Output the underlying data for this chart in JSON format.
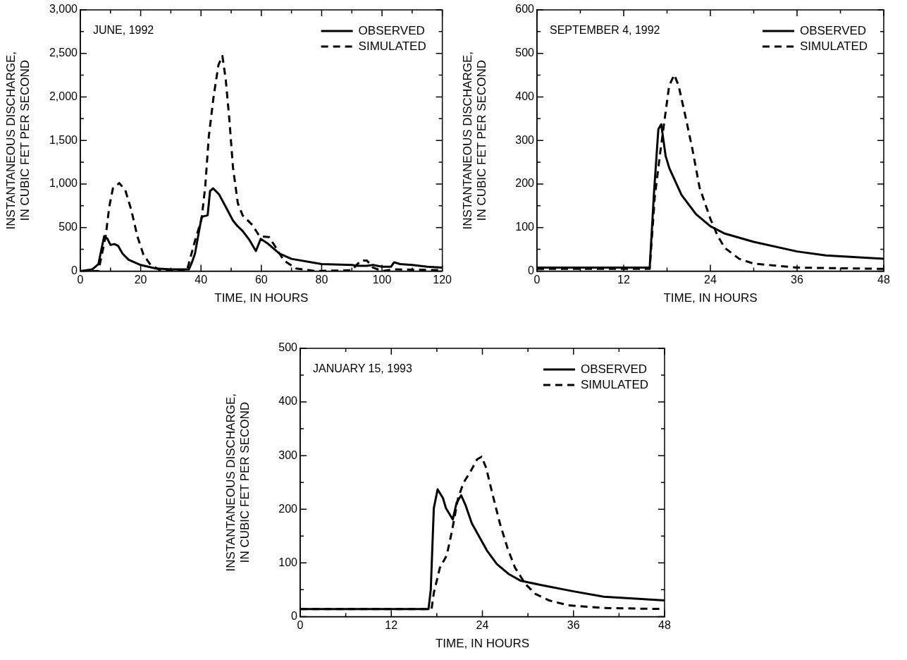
{
  "chart_data": [
    {
      "type": "line",
      "title": "JUNE, 1992",
      "xlabel": "TIME, IN HOURS",
      "ylabel": "INSTANTANEOUS DISCHARGE,\nIN CUBIC FET PER SECOND",
      "legend": "top right",
      "grid": false,
      "marker": "none",
      "xlim": [
        0,
        120
      ],
      "xticks": [
        0,
        {
          "value": 10,
          "label": null
        },
        20,
        {
          "value": 30,
          "label": null
        },
        40,
        {
          "value": 50,
          "label": null
        },
        60,
        {
          "value": 70,
          "label": null
        },
        80,
        {
          "value": 90,
          "label": null
        },
        100,
        {
          "value": 110,
          "label": null
        },
        120
      ],
      "ylim": [
        0,
        3000
      ],
      "yticks": [
        0,
        {
          "value": 250,
          "label": null
        },
        500,
        {
          "value": 750,
          "label": null
        },
        {
          "value": 1000,
          "label": "1,000"
        },
        {
          "value": 1250,
          "label": null
        },
        {
          "value": 1500,
          "label": "1,500"
        },
        {
          "value": 1750,
          "label": null
        },
        {
          "value": 2000,
          "label": "2,000"
        },
        {
          "value": 2250,
          "label": null
        },
        {
          "value": 2500,
          "label": "2,500"
        },
        {
          "value": 2750,
          "label": null
        },
        {
          "value": 3000,
          "label": "3,000"
        }
      ],
      "series": [
        {
          "name": "OBSERVED",
          "color": "#000000",
          "line_style": "solid",
          "x": [
            0,
            4,
            6,
            7,
            7.9,
            9,
            10,
            11.3,
            12.5,
            14,
            16,
            20,
            25,
            30,
            35,
            36,
            37,
            38,
            40.2,
            41,
            42.2,
            43,
            44,
            46,
            48,
            50.6,
            52,
            53.8,
            56,
            58.2,
            59.8,
            62,
            66,
            70,
            80,
            90,
            92,
            95,
            97,
            100,
            103,
            104,
            106,
            110,
            115,
            120
          ],
          "values": [
            0,
            20,
            80,
            250,
            400,
            370,
            300,
            310,
            290,
            200,
            130,
            70,
            30,
            20,
            20,
            20,
            100,
            200,
            620,
            630,
            640,
            920,
            950,
            880,
            750,
            580,
            520,
            460,
            360,
            230,
            370,
            320,
            200,
            140,
            80,
            70,
            60,
            60,
            70,
            50,
            50,
            100,
            80,
            70,
            50,
            40
          ]
        },
        {
          "name": "SIMULATED",
          "color": "#000000",
          "line_style": "dashed",
          "x": [
            0,
            6,
            8.4,
            9.6,
            10.8,
            12.9,
            14.9,
            16.9,
            18.9,
            20.9,
            23.3,
            26.5,
            30,
            35.3,
            37.7,
            40.2,
            41.4,
            42.6,
            44.2,
            45.8,
            47.1,
            48.2,
            49.4,
            50.6,
            52.2,
            53.8,
            57,
            59.4,
            62.6,
            65,
            67.5,
            71.5,
            78,
            90,
            93,
            95,
            97,
            100,
            104,
            120
          ],
          "values": [
            0,
            0,
            400,
            740,
            950,
            1010,
            930,
            700,
            400,
            190,
            70,
            10,
            0,
            0,
            310,
            600,
            970,
            1550,
            2010,
            2370,
            2470,
            2200,
            1740,
            1190,
            780,
            640,
            530,
            400,
            390,
            260,
            120,
            30,
            0,
            10,
            120,
            120,
            40,
            0,
            20,
            10
          ]
        }
      ]
    },
    {
      "type": "line",
      "title": "SEPTEMBER 4, 1992",
      "xlabel": "TIME, IN HOURS",
      "ylabel": "INSTANTANEOUS DISCHARGE,\nIN CUBIC FET PER SECOND",
      "legend": "top right",
      "grid": false,
      "marker": "none",
      "xlim": [
        0,
        48
      ],
      "xticks": [
        0,
        {
          "value": 6,
          "label": null
        },
        12,
        {
          "value": 18,
          "label": null
        },
        24,
        {
          "value": 30,
          "label": null
        },
        36,
        {
          "value": 42,
          "label": null
        },
        48
      ],
      "ylim": [
        0,
        600
      ],
      "yticks": [
        0,
        {
          "value": 50,
          "label": null
        },
        100,
        {
          "value": 150,
          "label": null
        },
        200,
        {
          "value": 250,
          "label": null
        },
        300,
        {
          "value": 350,
          "label": null
        },
        400,
        {
          "value": 450,
          "label": null
        },
        500,
        {
          "value": 550,
          "label": null
        },
        600
      ],
      "series": [
        {
          "name": "OBSERVED",
          "color": "#000000",
          "line_style": "solid",
          "x": [
            0,
            15.6,
            16.2,
            16.8,
            17.2,
            17.8,
            18.3,
            20,
            22,
            24,
            26,
            30,
            36,
            40,
            48
          ],
          "values": [
            8,
            8,
            181,
            326,
            337,
            265,
            237,
            175,
            131,
            103,
            86,
            67,
            45,
            36,
            28
          ]
        },
        {
          "name": "SIMULATED",
          "color": "#000000",
          "line_style": "dashed",
          "x": [
            0,
            15.6,
            16.3,
            17,
            17.8,
            18.3,
            19,
            19.6,
            20.5,
            21.5,
            22.5,
            24,
            25,
            26,
            28,
            30,
            36,
            48
          ],
          "values": [
            5,
            5,
            170,
            265,
            365,
            426,
            451,
            426,
            359,
            281,
            192,
            120,
            81,
            53,
            28,
            17,
            8,
            5
          ]
        }
      ]
    },
    {
      "type": "line",
      "title": "JANUARY 15, 1993",
      "xlabel": "TIME, IN HOURS",
      "ylabel": "INSTANTANEOUS DISCHARGE,\nIN CUBIC FET PER SECOND",
      "legend": "top right",
      "grid": false,
      "marker": "none",
      "xlim": [
        0,
        48
      ],
      "xticks": [
        0,
        {
          "value": 6,
          "label": null
        },
        12,
        {
          "value": 18,
          "label": null
        },
        24,
        {
          "value": 30,
          "label": null
        },
        36,
        {
          "value": 42,
          "label": null
        },
        48
      ],
      "ylim": [
        0,
        500
      ],
      "yticks": [
        0,
        {
          "value": 50,
          "label": null
        },
        100,
        {
          "value": 150,
          "label": null
        },
        200,
        {
          "value": 250,
          "label": null
        },
        300,
        {
          "value": 350,
          "label": null
        },
        400,
        {
          "value": 450,
          "label": null
        },
        500
      ],
      "series": [
        {
          "name": "OBSERVED",
          "color": "#000000",
          "line_style": "solid",
          "x": [
            0,
            16.9,
            17.2,
            17.6,
            18.1,
            18.8,
            19.2,
            20.1,
            20.6,
            21.2,
            21.8,
            22.6,
            23.5,
            24.6,
            25.9,
            27.5,
            29,
            32,
            36,
            40,
            48
          ],
          "values": [
            14,
            14,
            50,
            202,
            237,
            221,
            202,
            181,
            212,
            226,
            207,
            174,
            151,
            123,
            98,
            79,
            67,
            58,
            47,
            37,
            30
          ]
        },
        {
          "name": "SIMULATED",
          "color": "#000000",
          "line_style": "dashed",
          "x": [
            0,
            17.3,
            17.6,
            18.4,
            19.3,
            20,
            20.8,
            21.5,
            22.5,
            23.3,
            23.9,
            24.5,
            25.3,
            26.3,
            27.3,
            28.3,
            29.7,
            31,
            32.8,
            35.3,
            40,
            48
          ],
          "values": [
            14,
            14,
            44,
            91,
            114,
            160,
            221,
            249,
            272,
            293,
            298,
            277,
            230,
            174,
            128,
            91,
            60,
            42,
            30,
            21,
            16,
            14
          ]
        }
      ]
    }
  ]
}
